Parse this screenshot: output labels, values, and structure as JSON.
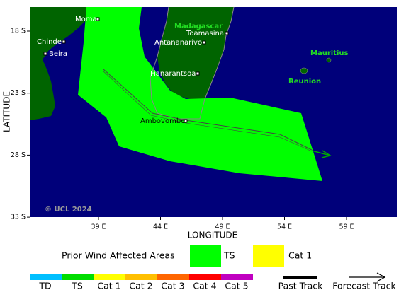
{
  "map": {
    "axes": {
      "x_title": "LONGITUDE",
      "y_title": "LATITUDE",
      "x_ticks": [
        "39 E",
        "44 E",
        "49 E",
        "54 E",
        "59 E"
      ],
      "y_ticks": [
        "18 S",
        "23 S",
        "28 S",
        "33 S"
      ]
    },
    "places": {
      "moma": "Moma",
      "chinde": "Chinde",
      "beira": "Beira",
      "toamasina": "Toamasina",
      "antananarivo": "Antananarivo",
      "fianarantsoa": "Fianarantsoa",
      "ambovombe": "Ambovombe"
    },
    "regions": {
      "madagascar": "Madagascar",
      "mauritius": "Mauritius",
      "reunion": "Reunion"
    },
    "credit": "© UCL 2024"
  },
  "legend": {
    "title": "Prior Wind Affected Areas",
    "swatches": [
      "TS",
      "Cat 1"
    ],
    "scale": [
      "TD",
      "TS",
      "Cat 1",
      "Cat 2",
      "Cat 3",
      "Cat 4",
      "Cat 5"
    ],
    "tracks": [
      "Past Track",
      "Forecast Track"
    ]
  }
}
